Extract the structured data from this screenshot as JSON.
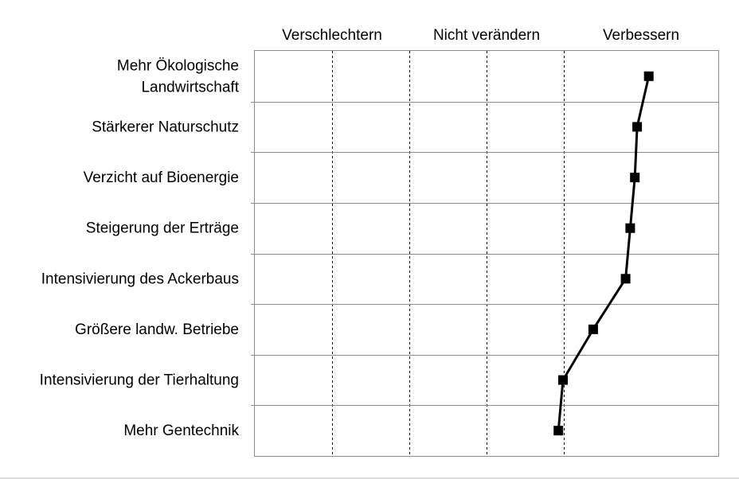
{
  "chart_data": {
    "type": "line",
    "title": "",
    "column_headers": [
      "Verschlechtern",
      "Nicht verändern",
      "Verbessern"
    ],
    "categories": [
      [
        "Mehr Ökologische",
        "Landwirtschaft"
      ],
      [
        "Stärkerer Naturschutz"
      ],
      [
        "Verzicht auf Bioenergie"
      ],
      [
        "Steigerung der Erträge"
      ],
      [
        "Intensivierung des Ackerbaus"
      ],
      [
        "Größere landw. Betriebe"
      ],
      [
        "Intensivierung der Tierhaltung"
      ],
      [
        "Mehr Gentechnik"
      ]
    ],
    "values": [
      0.7,
      0.65,
      0.64,
      0.62,
      0.6,
      0.46,
      0.33,
      0.31
    ],
    "xlim": [
      -1,
      1
    ],
    "grid": true,
    "legend": "none",
    "colors": {
      "line": "#000000",
      "marker": "#000000",
      "grid": "#000000",
      "frame": "#8c8c8c"
    }
  }
}
